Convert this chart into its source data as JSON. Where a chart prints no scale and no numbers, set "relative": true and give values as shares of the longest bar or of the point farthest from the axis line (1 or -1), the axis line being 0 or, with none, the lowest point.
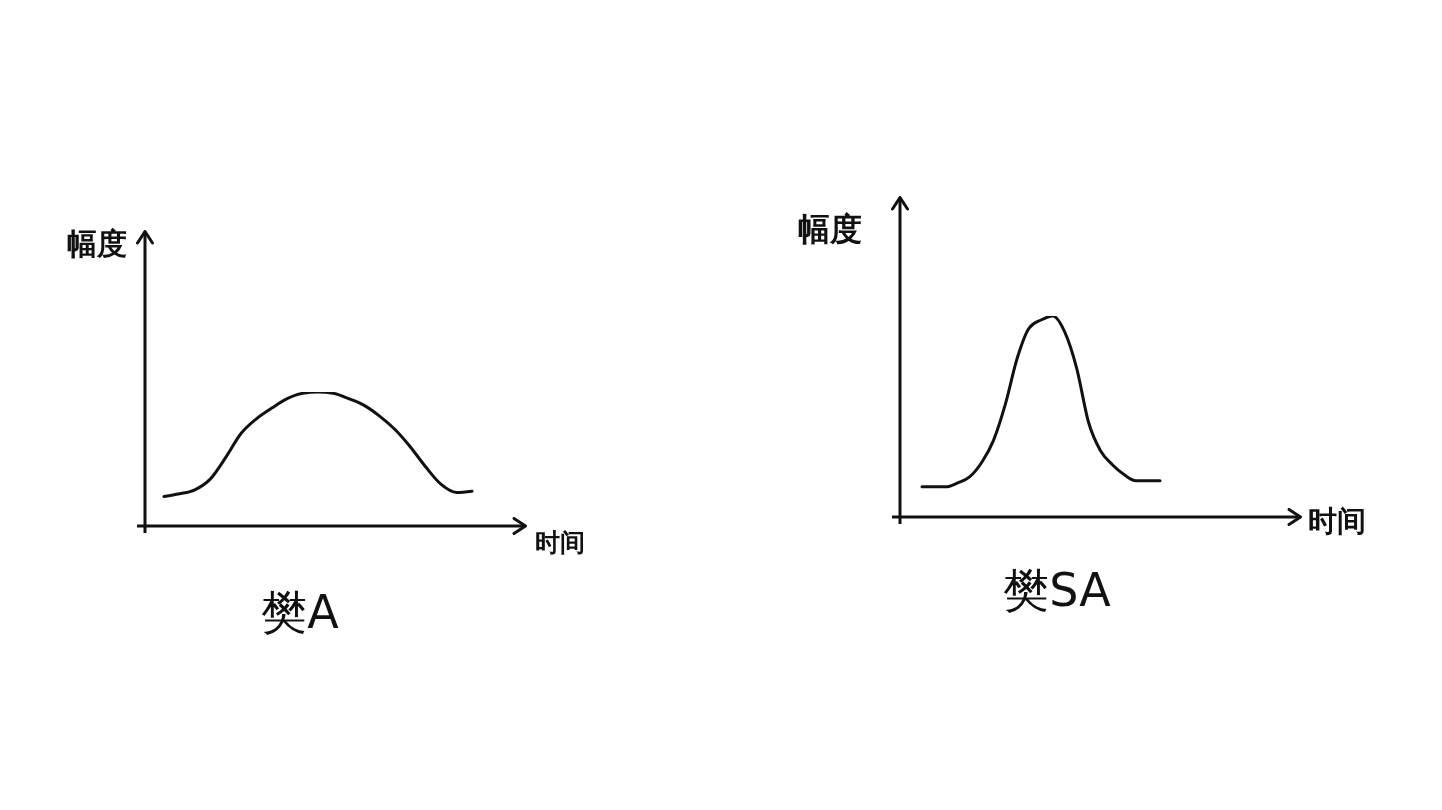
{
  "chart_data": [
    {
      "type": "line",
      "title": "樊A",
      "xlabel": "时间",
      "ylabel": "幅度",
      "relative": true,
      "color": "#111111",
      "categories": [
        null,
        null,
        null,
        null,
        null,
        null,
        null,
        null,
        null,
        null,
        null,
        null,
        null,
        null,
        null,
        null,
        null,
        null,
        null,
        null,
        null
      ],
      "values": [
        0.22,
        0.24,
        0.27,
        0.35,
        0.51,
        0.69,
        0.8,
        0.88,
        0.95,
        0.99,
        1,
        0.99,
        0.95,
        0.9,
        0.82,
        0.72,
        0.59,
        0.44,
        0.31,
        0.25,
        0.26
      ]
    },
    {
      "type": "line",
      "title": "樊SA",
      "xlabel": "时间",
      "ylabel": "幅度",
      "relative": true,
      "color": "#111111",
      "categories": [
        null,
        null,
        null,
        null,
        null,
        null,
        null,
        null,
        null,
        null,
        null,
        null,
        null,
        null,
        null,
        null,
        null,
        null,
        null,
        null,
        null
      ],
      "values": [
        0.15,
        0.15,
        0.15,
        0.17,
        0.2,
        0.27,
        0.38,
        0.56,
        0.79,
        0.94,
        0.98,
        1,
        0.92,
        0.74,
        0.47,
        0.33,
        0.26,
        0.21,
        0.18,
        0.18,
        0.18
      ]
    }
  ]
}
